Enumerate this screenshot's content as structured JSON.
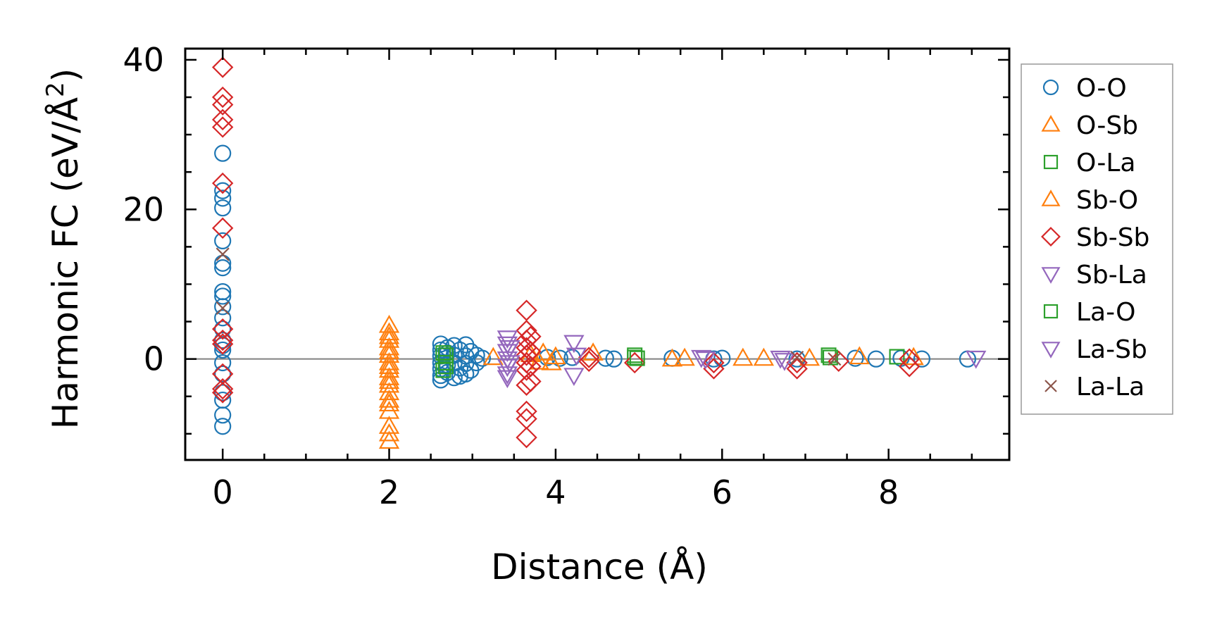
{
  "chart_data": {
    "type": "scatter",
    "title": "",
    "xlabel": "Distance (Å)",
    "ylabel": "Harmonic FC (eV/Å",
    "ylabel_superscript": "2",
    "ylabel_suffix": ")",
    "xlim": [
      -0.45,
      9.45
    ],
    "ylim": [
      -13.5,
      41.5
    ],
    "xticks": [
      0,
      2,
      4,
      6,
      8
    ],
    "xtick_labels": [
      "0",
      "2",
      "4",
      "6",
      "8"
    ],
    "yticks": [
      0,
      20,
      40
    ],
    "ytick_labels": [
      "0",
      "20",
      "40"
    ],
    "x_minor_step": 0.5,
    "y_minor_step": 5,
    "zero_line": true,
    "grid": false,
    "legend_position": "outside-right",
    "series": [
      {
        "name": "O-O",
        "marker": "circle",
        "color": "#1f77b4",
        "points": [
          [
            0,
            27.5
          ],
          [
            0,
            22.5
          ],
          [
            0,
            21.5
          ],
          [
            0,
            20.2
          ],
          [
            0,
            15.8
          ],
          [
            0,
            12.8
          ],
          [
            0,
            12.2
          ],
          [
            0,
            9
          ],
          [
            0,
            8.4
          ],
          [
            0,
            7
          ],
          [
            0,
            5.5
          ],
          [
            0,
            4
          ],
          [
            0,
            2.5
          ],
          [
            0,
            1.8
          ],
          [
            0,
            1.2
          ],
          [
            0,
            -0.5
          ],
          [
            0,
            -2
          ],
          [
            0,
            -4.5
          ],
          [
            0,
            -5.5
          ],
          [
            0,
            -7.5
          ],
          [
            0,
            -9
          ],
          [
            2.62,
            2
          ],
          [
            2.62,
            1.2
          ],
          [
            2.62,
            0.4
          ],
          [
            2.62,
            -0.5
          ],
          [
            2.62,
            -1.3
          ],
          [
            2.62,
            -2.2
          ],
          [
            2.62,
            -2.8
          ],
          [
            2.7,
            1.5
          ],
          [
            2.7,
            0.8
          ],
          [
            2.7,
            -0.8
          ],
          [
            2.7,
            -1.8
          ],
          [
            2.78,
            1.8
          ],
          [
            2.78,
            0.5
          ],
          [
            2.78,
            -0.5
          ],
          [
            2.78,
            -2.5
          ],
          [
            2.85,
            1.2
          ],
          [
            2.85,
            -1.2
          ],
          [
            2.85,
            -2.3
          ],
          [
            2.92,
            1.9
          ],
          [
            2.92,
            0.4
          ],
          [
            2.92,
            -0.6
          ],
          [
            2.92,
            -2
          ],
          [
            2.98,
            1
          ],
          [
            2.98,
            -1.5
          ],
          [
            3.05,
            0.5
          ],
          [
            3.05,
            -0.5
          ],
          [
            3.12,
            0.1
          ],
          [
            3.9,
            0.2
          ],
          [
            4.05,
            0.1
          ],
          [
            4.2,
            0.2
          ],
          [
            4.6,
            0.1
          ],
          [
            4.7,
            0
          ],
          [
            5.4,
            0.1
          ],
          [
            5.9,
            0
          ],
          [
            6.0,
            0.1
          ],
          [
            6.9,
            0
          ],
          [
            7.6,
            0.1
          ],
          [
            7.85,
            0
          ],
          [
            8.15,
            0.1
          ],
          [
            8.4,
            0
          ],
          [
            8.95,
            0
          ]
        ]
      },
      {
        "name": "O-Sb",
        "marker": "triangle-up",
        "color": "#ff7f0e",
        "points": [
          [
            2,
            4.5
          ],
          [
            2,
            3.5
          ],
          [
            2,
            2.5
          ],
          [
            2,
            1.5
          ],
          [
            2,
            0.5
          ],
          [
            2,
            -0.5
          ],
          [
            2,
            -1.5
          ],
          [
            2,
            -2.5
          ],
          [
            2,
            -3.5
          ],
          [
            2,
            -4.5
          ],
          [
            2,
            -5.5
          ],
          [
            2,
            -6
          ],
          [
            2,
            -9
          ],
          [
            2,
            -10
          ],
          [
            2,
            -11
          ],
          [
            3.25,
            0.2
          ],
          [
            3.85,
            0.8
          ],
          [
            3.95,
            -0.5
          ],
          [
            4.45,
            0.8
          ],
          [
            5.4,
            0
          ],
          [
            5.55,
            0.1
          ],
          [
            6.25,
            0.1
          ],
          [
            6.5,
            0.1
          ],
          [
            7.05,
            0.1
          ],
          [
            7.65,
            0.3
          ],
          [
            8.3,
            0.2
          ]
        ]
      },
      {
        "name": "O-La",
        "marker": "square",
        "color": "#2ca02c",
        "points": [
          [
            2.68,
            0.5
          ],
          [
            2.68,
            -0.5
          ],
          [
            2.68,
            -1
          ],
          [
            4.95,
            0.5
          ],
          [
            4.95,
            0.2
          ],
          [
            7.28,
            0.5
          ],
          [
            8.1,
            0.3
          ]
        ]
      },
      {
        "name": "Sb-O",
        "marker": "triangle-up",
        "color": "#ff7f0e",
        "points": [
          [
            2,
            3
          ],
          [
            2,
            1
          ],
          [
            2,
            -1
          ],
          [
            2,
            -3
          ],
          [
            2,
            -7
          ],
          [
            3.7,
            0.6
          ],
          [
            3.8,
            -0.4
          ],
          [
            4.0,
            0.3
          ]
        ]
      },
      {
        "name": "Sb-Sb",
        "marker": "diamond",
        "color": "#d62728",
        "points": [
          [
            0,
            39
          ],
          [
            0,
            35
          ],
          [
            0,
            34
          ],
          [
            0,
            32
          ],
          [
            0,
            31
          ],
          [
            0,
            23.5
          ],
          [
            0,
            17.5
          ],
          [
            0,
            4
          ],
          [
            0,
            2.5
          ],
          [
            0,
            2
          ],
          [
            0,
            -2
          ],
          [
            0,
            -4
          ],
          [
            0,
            -4.5
          ],
          [
            3.65,
            6.5
          ],
          [
            3.65,
            3.8
          ],
          [
            3.65,
            2.5
          ],
          [
            3.65,
            1.5
          ],
          [
            3.65,
            0.5
          ],
          [
            3.65,
            -0.5
          ],
          [
            3.65,
            -1.5
          ],
          [
            3.65,
            -3.5
          ],
          [
            3.65,
            -7
          ],
          [
            3.65,
            -8
          ],
          [
            3.65,
            -10.5
          ],
          [
            3.7,
            3
          ],
          [
            3.7,
            1
          ],
          [
            3.7,
            -1
          ],
          [
            3.7,
            -3
          ],
          [
            4.4,
            0.2
          ],
          [
            4.4,
            -0.3
          ],
          [
            4.95,
            -0.5
          ],
          [
            5.9,
            -0.5
          ],
          [
            5.9,
            -1.3
          ],
          [
            6.9,
            -0.5
          ],
          [
            6.9,
            -1.3
          ],
          [
            7.4,
            -0.3
          ],
          [
            8.25,
            0
          ],
          [
            8.25,
            -1
          ]
        ]
      },
      {
        "name": "Sb-La",
        "marker": "triangle-down",
        "color": "#9467bd",
        "points": [
          [
            3.42,
            2.8
          ],
          [
            3.42,
            2
          ],
          [
            3.42,
            1
          ],
          [
            3.42,
            0
          ],
          [
            3.42,
            -1
          ],
          [
            3.42,
            -2
          ],
          [
            3.42,
            -2.5
          ],
          [
            4.22,
            2.2
          ],
          [
            4.22,
            -2.2
          ],
          [
            5.8,
            0
          ],
          [
            6.7,
            0.1
          ],
          [
            9.05,
            0.1
          ]
        ]
      },
      {
        "name": "La-O",
        "marker": "square",
        "color": "#2ca02c",
        "points": [
          [
            2.65,
            0.8
          ],
          [
            2.65,
            -1.5
          ],
          [
            4.98,
            0.1
          ],
          [
            7.3,
            0.2
          ]
        ]
      },
      {
        "name": "La-Sb",
        "marker": "triangle-down",
        "color": "#9467bd",
        "points": [
          [
            3.45,
            1.5
          ],
          [
            3.45,
            -0.5
          ],
          [
            4.25,
            0.5
          ],
          [
            5.75,
            0.2
          ],
          [
            6.75,
            -0.2
          ]
        ]
      },
      {
        "name": "La-La",
        "marker": "x",
        "color": "#8c564b",
        "points": [
          [
            0,
            14
          ],
          [
            0,
            6.8
          ],
          [
            6.9,
            0.2
          ],
          [
            7.35,
            0
          ]
        ]
      }
    ]
  }
}
